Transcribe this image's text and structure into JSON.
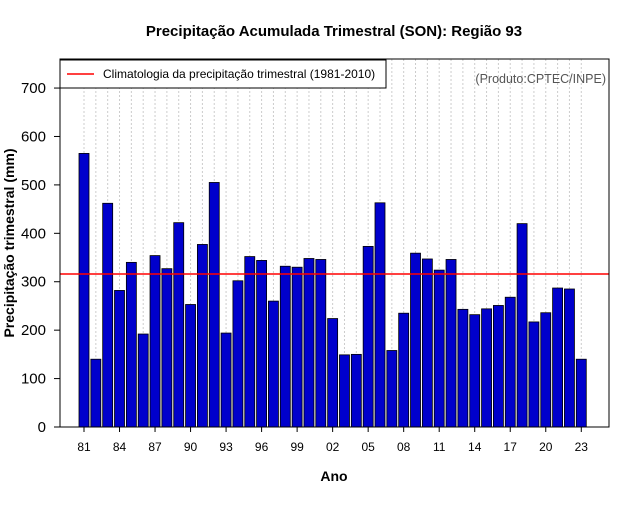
{
  "chart_data": {
    "type": "bar",
    "title": "Precipitação Acumulada Trimestral (SON): Região 93",
    "xlabel": "Ano",
    "ylabel": "Precipitação trimestral (mm)",
    "ylim": [
      0,
      760
    ],
    "yticks": [
      0,
      100,
      200,
      300,
      400,
      500,
      600,
      700
    ],
    "years": [
      1981,
      1982,
      1983,
      1984,
      1985,
      1986,
      1987,
      1988,
      1989,
      1990,
      1991,
      1992,
      1993,
      1994,
      1995,
      1996,
      1997,
      1998,
      1999,
      2000,
      2001,
      2002,
      2003,
      2004,
      2005,
      2006,
      2007,
      2008,
      2009,
      2010,
      2011,
      2012,
      2013,
      2014,
      2015,
      2016,
      2017,
      2018,
      2019,
      2020,
      2021,
      2022,
      2023
    ],
    "values": [
      565,
      140,
      462,
      282,
      340,
      192,
      354,
      327,
      422,
      253,
      377,
      505,
      194,
      302,
      352,
      344,
      260,
      332,
      330,
      348,
      346,
      224,
      149,
      150,
      373,
      463,
      158,
      235,
      359,
      347,
      324,
      346,
      243,
      232,
      244,
      251,
      268,
      420,
      217,
      236,
      287,
      285,
      140
    ],
    "xtick_labels": [
      "81",
      "84",
      "87",
      "90",
      "93",
      "96",
      "99",
      "02",
      "05",
      "08",
      "11",
      "14",
      "17",
      "20",
      "23"
    ],
    "climatology": 316,
    "grid": true,
    "legend": {
      "position": "top-left",
      "label": "Climatologia da precipitação trimestral (1981-2010)"
    },
    "annotation": "(Produto:CPTEC/INPE)",
    "colors": {
      "bar": "#0000cc",
      "bar_edge": "#000000",
      "climatology_line": "#ff0000",
      "grid": "#cccccc"
    }
  }
}
